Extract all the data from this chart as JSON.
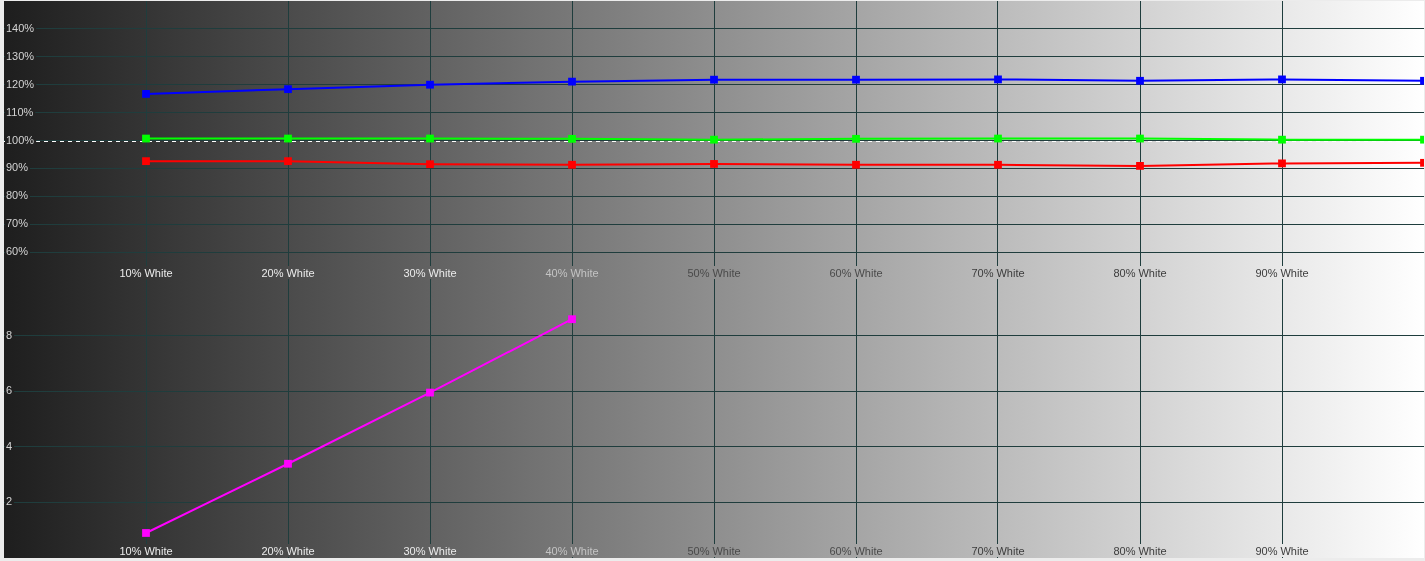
{
  "chart_data": [
    {
      "type": "line",
      "x": [
        10,
        20,
        30,
        40,
        50,
        60,
        70,
        80,
        90,
        100
      ],
      "series": [
        {
          "color": "#0000ff",
          "values": [
            116.7,
            118.4,
            120.0,
            121.1,
            121.8,
            121.8,
            121.9,
            121.4,
            121.9,
            121.4
          ]
        },
        {
          "color": "#00ff00",
          "values": [
            100.7,
            100.7,
            100.7,
            100.6,
            100.3,
            100.6,
            100.7,
            100.7,
            100.3,
            100.3
          ]
        },
        {
          "color": "#ff0000",
          "values": [
            92.6,
            92.6,
            91.5,
            91.3,
            91.6,
            91.3,
            91.3,
            90.9,
            91.8,
            92.0
          ]
        }
      ],
      "xlim": [
        0,
        100
      ],
      "xticks": [
        {
          "value": 10,
          "label": "10% White"
        },
        {
          "value": 20,
          "label": "20% White"
        },
        {
          "value": 30,
          "label": "30% White"
        },
        {
          "value": 40,
          "label": "40% White"
        },
        {
          "value": 50,
          "label": "50% White"
        },
        {
          "value": 60,
          "label": "60% White"
        },
        {
          "value": 70,
          "label": "70% White"
        },
        {
          "value": 80,
          "label": "80% White"
        },
        {
          "value": 90,
          "label": "90% White"
        }
      ],
      "ylim": [
        50,
        150
      ],
      "yticks": [
        {
          "value": 60,
          "label": "60%"
        },
        {
          "value": 70,
          "label": "70%"
        },
        {
          "value": 80,
          "label": "80%"
        },
        {
          "value": 90,
          "label": "90%"
        },
        {
          "value": 100,
          "label": "100%"
        },
        {
          "value": 110,
          "label": "110%"
        },
        {
          "value": 120,
          "label": "120%"
        },
        {
          "value": 130,
          "label": "130%"
        },
        {
          "value": 140,
          "label": "140%"
        }
      ],
      "grid": true,
      "marker": "square",
      "line_style": "solid",
      "ref_lines": [
        {
          "axis": "y",
          "value": 100,
          "color": "#ffffff",
          "line_style": "dashed"
        }
      ]
    },
    {
      "type": "line",
      "x": [
        10,
        20,
        30,
        40
      ],
      "series": [
        {
          "color": "#ff00ff",
          "values": [
            0.9,
            3.39,
            5.95,
            8.59
          ]
        }
      ],
      "xlim": [
        0,
        100
      ],
      "xticks": [
        {
          "value": 10,
          "label": "10% White"
        },
        {
          "value": 20,
          "label": "20% White"
        },
        {
          "value": 30,
          "label": "30% White"
        },
        {
          "value": 40,
          "label": "40% White"
        },
        {
          "value": 50,
          "label": "50% White"
        },
        {
          "value": 60,
          "label": "60% White"
        },
        {
          "value": 70,
          "label": "70% White"
        },
        {
          "value": 80,
          "label": "80% White"
        },
        {
          "value": 90,
          "label": "90% White"
        }
      ],
      "ylim": [
        0,
        10
      ],
      "yticks": [
        2,
        4,
        6,
        8
      ],
      "grid": true,
      "marker": "square",
      "line_style": "solid"
    }
  ]
}
